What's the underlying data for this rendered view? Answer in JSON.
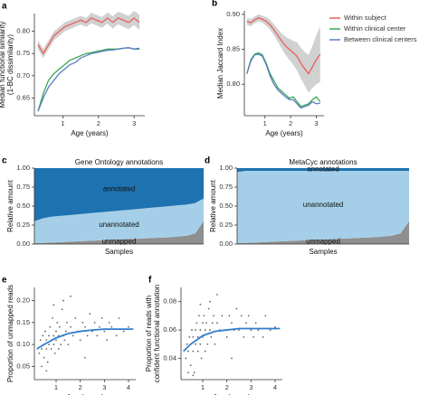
{
  "chart_data": [
    {
      "panel": "a",
      "type": "line",
      "xlabel": "Age (years)",
      "ylabel": [
        "Median functional similarity",
        "(1-BC dissimilarity)"
      ],
      "xlim": [
        0.2,
        3.3
      ],
      "xticks": [
        1,
        2,
        3
      ],
      "ylim": [
        0.61,
        0.84
      ],
      "yticks": [
        {
          "value": 0.65,
          "label": "0.65"
        },
        {
          "value": 0.7,
          "label": "0.70"
        },
        {
          "value": 0.75,
          "label": "0.75"
        },
        {
          "value": 0.8,
          "label": "0.80"
        }
      ],
      "x": [
        0.3,
        0.45,
        0.6,
        0.75,
        0.9,
        1.05,
        1.2,
        1.35,
        1.5,
        1.65,
        1.8,
        1.95,
        2.1,
        2.25,
        2.4,
        2.55,
        2.7,
        2.85,
        3.0,
        3.15
      ],
      "series": [
        {
          "name": "Within subject",
          "color": "#e8605a",
          "values": [
            0.77,
            0.75,
            0.77,
            0.79,
            0.8,
            0.81,
            0.815,
            0.82,
            0.825,
            0.82,
            0.83,
            0.825,
            0.82,
            0.83,
            0.82,
            0.83,
            0.825,
            0.82,
            0.83,
            0.82
          ],
          "lower": [
            0.76,
            0.74,
            0.76,
            0.78,
            0.79,
            0.8,
            0.805,
            0.81,
            0.815,
            0.81,
            0.818,
            0.813,
            0.808,
            0.817,
            0.806,
            0.816,
            0.81,
            0.805,
            0.814,
            0.803
          ],
          "upper": [
            0.78,
            0.76,
            0.78,
            0.8,
            0.81,
            0.82,
            0.825,
            0.83,
            0.835,
            0.83,
            0.842,
            0.837,
            0.832,
            0.843,
            0.834,
            0.844,
            0.84,
            0.835,
            0.846,
            0.837
          ]
        },
        {
          "name": "Within clinical center",
          "color": "#3aa655",
          "values": [
            0.62,
            0.66,
            0.69,
            0.705,
            0.715,
            0.725,
            0.735,
            0.74,
            0.745,
            0.75,
            0.752,
            0.755,
            0.757,
            0.76,
            0.76,
            0.76,
            0.762,
            0.763,
            0.76,
            0.76
          ]
        },
        {
          "name": "Between clinical centers",
          "color": "#5b7fc4",
          "values": [
            0.62,
            0.65,
            0.675,
            0.69,
            0.705,
            0.715,
            0.725,
            0.73,
            0.74,
            0.745,
            0.75,
            0.752,
            0.755,
            0.757,
            0.758,
            0.76,
            0.762,
            0.763,
            0.76,
            0.762
          ]
        }
      ]
    },
    {
      "panel": "b",
      "type": "line",
      "xlabel": "Age (years)",
      "ylabel": [
        "Median Jaccard Index"
      ],
      "legend": "right",
      "xlim": [
        0.2,
        3.3
      ],
      "xticks": [
        1,
        2,
        3
      ],
      "ylim": [
        0.755,
        0.905
      ],
      "yticks": [
        {
          "value": 0.8,
          "label": "0.80"
        },
        0.85,
        {
          "value": 0.9,
          "label": "0.90"
        }
      ],
      "x": [
        0.3,
        0.45,
        0.6,
        0.75,
        0.9,
        1.05,
        1.2,
        1.35,
        1.5,
        1.65,
        1.8,
        1.95,
        2.1,
        2.25,
        2.4,
        2.55,
        2.7,
        2.85,
        3.0,
        3.15
      ],
      "series": [
        {
          "name": "Within subject",
          "color": "#e8605a",
          "values": [
            0.89,
            0.888,
            0.892,
            0.895,
            0.893,
            0.89,
            0.885,
            0.878,
            0.87,
            0.862,
            0.855,
            0.85,
            0.845,
            0.84,
            0.83,
            0.822,
            0.815,
            0.825,
            0.835,
            0.843
          ],
          "lower": [
            0.885,
            0.883,
            0.887,
            0.89,
            0.888,
            0.884,
            0.878,
            0.87,
            0.861,
            0.851,
            0.842,
            0.835,
            0.828,
            0.82,
            0.808,
            0.798,
            0.788,
            0.795,
            0.8,
            0.803
          ],
          "upper": [
            0.895,
            0.893,
            0.897,
            0.9,
            0.898,
            0.896,
            0.892,
            0.886,
            0.879,
            0.873,
            0.868,
            0.865,
            0.862,
            0.86,
            0.852,
            0.846,
            0.842,
            0.855,
            0.87,
            0.883
          ]
        },
        {
          "name": "Within clinical center",
          "color": "#3aa655",
          "values": [
            0.815,
            0.835,
            0.843,
            0.845,
            0.842,
            0.83,
            0.815,
            0.805,
            0.795,
            0.79,
            0.785,
            0.78,
            0.782,
            0.775,
            0.768,
            0.77,
            0.772,
            0.778,
            0.782,
            0.775
          ]
        },
        {
          "name": "Between clinical centers",
          "color": "#5b7fc4",
          "values": [
            0.815,
            0.833,
            0.842,
            0.843,
            0.84,
            0.828,
            0.812,
            0.8,
            0.792,
            0.787,
            0.782,
            0.778,
            0.778,
            0.772,
            0.766,
            0.768,
            0.77,
            0.775,
            0.772,
            0.773
          ]
        }
      ]
    },
    {
      "panel": "c",
      "type": "stacked_area",
      "title": "Gene Ontology annotations",
      "xlabel": "Samples",
      "ylabel": [
        "Relative amount"
      ],
      "ylim": [
        0,
        1
      ],
      "yticks": [
        {
          "value": 0,
          "label": "0.00"
        },
        0.25,
        {
          "value": 0.5,
          "label": "0.50"
        },
        0.75,
        {
          "value": 1,
          "label": "1.00"
        }
      ],
      "categories": [
        null,
        null,
        null,
        null,
        null,
        null,
        null,
        null,
        null,
        null,
        null,
        null,
        null,
        null,
        null,
        null,
        null,
        null,
        null,
        null,
        null
      ],
      "series": [
        {
          "name": "unmapped",
          "color": "#8f8f8f",
          "values": [
            0.01,
            0.015,
            0.02,
            0.025,
            0.03,
            0.035,
            0.04,
            0.045,
            0.05,
            0.055,
            0.06,
            0.065,
            0.07,
            0.075,
            0.08,
            0.085,
            0.09,
            0.1,
            0.11,
            0.14,
            0.3
          ]
        },
        {
          "name": "unannotated",
          "color": "#a5cfe8",
          "values": [
            0.29,
            0.325,
            0.34,
            0.345,
            0.35,
            0.355,
            0.36,
            0.365,
            0.37,
            0.375,
            0.38,
            0.385,
            0.39,
            0.395,
            0.4,
            0.405,
            0.41,
            0.41,
            0.41,
            0.4,
            0.3
          ]
        },
        {
          "name": "annotated",
          "color": "#1f72b0",
          "values": [
            0.7,
            0.66,
            0.64,
            0.63,
            0.62,
            0.61,
            0.6,
            0.59,
            0.58,
            0.57,
            0.56,
            0.55,
            0.54,
            0.53,
            0.52,
            0.51,
            0.5,
            0.49,
            0.48,
            0.46,
            0.4
          ]
        }
      ]
    },
    {
      "panel": "d",
      "type": "stacked_area",
      "title": "MetaCyc annotations",
      "xlabel": "Samples",
      "ylabel": [
        "Relative amount"
      ],
      "ylim": [
        0,
        1
      ],
      "yticks": [
        {
          "value": 0,
          "label": "0.00"
        },
        0.25,
        {
          "value": 0.5,
          "label": "0.50"
        },
        0.75,
        {
          "value": 1,
          "label": "1.00"
        }
      ],
      "categories": [
        null,
        null,
        null,
        null,
        null,
        null,
        null,
        null,
        null,
        null,
        null,
        null,
        null,
        null,
        null,
        null,
        null,
        null,
        null,
        null,
        null
      ],
      "series": [
        {
          "name": "unmapped",
          "color": "#8f8f8f",
          "values": [
            0.01,
            0.015,
            0.02,
            0.025,
            0.03,
            0.035,
            0.04,
            0.045,
            0.05,
            0.055,
            0.06,
            0.065,
            0.07,
            0.075,
            0.08,
            0.085,
            0.09,
            0.1,
            0.11,
            0.14,
            0.3
          ]
        },
        {
          "name": "unannotated",
          "color": "#a5cfe8",
          "values": [
            0.94,
            0.95,
            0.945,
            0.94,
            0.935,
            0.93,
            0.925,
            0.92,
            0.915,
            0.91,
            0.905,
            0.9,
            0.895,
            0.89,
            0.885,
            0.88,
            0.875,
            0.865,
            0.855,
            0.825,
            0.665
          ]
        },
        {
          "name": "annotated",
          "color": "#1f72b0",
          "values": [
            0.05,
            0.035,
            0.035,
            0.035,
            0.035,
            0.035,
            0.035,
            0.035,
            0.035,
            0.035,
            0.035,
            0.035,
            0.035,
            0.035,
            0.035,
            0.035,
            0.035,
            0.035,
            0.035,
            0.035,
            0.035
          ]
        }
      ]
    },
    {
      "panel": "e",
      "type": "scatter",
      "xlabel": "Age (years)",
      "ylabel": [
        "Proportion of unmapped reads"
      ],
      "xlim": [
        0.1,
        4.3
      ],
      "xticks": [
        1,
        2,
        3,
        4
      ],
      "ylim": [
        0.02,
        0.23
      ],
      "yticks": [
        0.05,
        {
          "value": 0.1,
          "label": "0.10"
        },
        0.15,
        {
          "value": 0.2,
          "label": "0.20"
        }
      ],
      "color": "#000000",
      "x": [
        0.3,
        0.35,
        0.4,
        0.45,
        0.5,
        0.5,
        0.55,
        0.6,
        0.6,
        0.65,
        0.7,
        0.7,
        0.75,
        0.8,
        0.8,
        0.85,
        0.9,
        0.9,
        0.95,
        1.0,
        1.0,
        1.05,
        1.1,
        1.1,
        1.15,
        1.2,
        1.25,
        1.3,
        1.35,
        1.4,
        1.45,
        1.5,
        1.6,
        1.7,
        1.8,
        1.9,
        2.0,
        2.1,
        2.2,
        2.3,
        2.4,
        2.5,
        2.6,
        2.7,
        2.8,
        2.9,
        3.0,
        3.1,
        3.2,
        3.3,
        3.5,
        3.6,
        3.8,
        4.0,
        0.4,
        0.6,
        1.3,
        0.9,
        1.6,
        2.2
      ],
      "y": [
        0.08,
        0.11,
        0.09,
        0.12,
        0.07,
        0.1,
        0.13,
        0.09,
        0.11,
        0.06,
        0.12,
        0.1,
        0.14,
        0.09,
        0.11,
        0.16,
        0.1,
        0.12,
        0.08,
        0.13,
        0.11,
        0.15,
        0.09,
        0.12,
        0.14,
        0.1,
        0.18,
        0.12,
        0.11,
        0.13,
        0.15,
        0.1,
        0.14,
        0.12,
        0.16,
        0.13,
        0.11,
        0.15,
        0.14,
        0.12,
        0.17,
        0.13,
        0.15,
        0.12,
        0.14,
        0.16,
        0.13,
        0.11,
        0.15,
        0.14,
        0.12,
        0.16,
        0.13,
        0.14,
        0.05,
        0.04,
        0.2,
        0.19,
        0.21,
        0.07
      ],
      "trend": {
        "color": "#2f7fd0",
        "x": [
          0.2,
          0.5,
          1,
          1.5,
          2,
          2.5,
          3,
          3.5,
          4,
          4.2
        ],
        "y": [
          0.09,
          0.1,
          0.115,
          0.125,
          0.13,
          0.133,
          0.135,
          0.135,
          0.135,
          0.135
        ]
      }
    },
    {
      "panel": "f",
      "type": "scatter",
      "xlabel": "Age (years)",
      "ylabel": [
        "Proportion of reads with",
        "confident functional annotation"
      ],
      "xlim": [
        0.1,
        4.3
      ],
      "xticks": [
        1,
        2,
        3,
        4
      ],
      "ylim": [
        0.025,
        0.09
      ],
      "yticks": [
        0.04,
        0.06,
        0.08
      ],
      "color": "#000000",
      "x": [
        0.3,
        0.35,
        0.4,
        0.45,
        0.5,
        0.5,
        0.55,
        0.6,
        0.6,
        0.65,
        0.7,
        0.7,
        0.75,
        0.8,
        0.8,
        0.85,
        0.9,
        0.9,
        0.95,
        1.0,
        1.0,
        1.05,
        1.1,
        1.1,
        1.15,
        1.2,
        1.25,
        1.3,
        1.35,
        1.4,
        1.45,
        1.5,
        1.6,
        1.7,
        1.8,
        1.9,
        2.0,
        2.1,
        2.2,
        2.3,
        2.4,
        2.5,
        2.6,
        2.7,
        2.8,
        2.9,
        3.0,
        3.1,
        3.2,
        3.3,
        3.5,
        3.6,
        3.8,
        4.0,
        0.4,
        0.6,
        1.3,
        0.9,
        1.6,
        2.2
      ],
      "y": [
        0.04,
        0.05,
        0.045,
        0.055,
        0.035,
        0.05,
        0.06,
        0.045,
        0.055,
        0.03,
        0.06,
        0.05,
        0.065,
        0.045,
        0.055,
        0.07,
        0.05,
        0.06,
        0.04,
        0.065,
        0.055,
        0.07,
        0.045,
        0.06,
        0.065,
        0.05,
        0.075,
        0.06,
        0.055,
        0.065,
        0.07,
        0.05,
        0.065,
        0.06,
        0.07,
        0.06,
        0.055,
        0.07,
        0.065,
        0.06,
        0.075,
        0.06,
        0.07,
        0.055,
        0.065,
        0.07,
        0.06,
        0.055,
        0.065,
        0.06,
        0.055,
        0.07,
        0.06,
        0.062,
        0.03,
        0.028,
        0.08,
        0.078,
        0.085,
        0.04
      ],
      "trend": {
        "color": "#2f7fd0",
        "x": [
          0.2,
          0.5,
          1,
          1.5,
          2,
          2.5,
          3,
          3.5,
          4,
          4.2
        ],
        "y": [
          0.045,
          0.05,
          0.056,
          0.059,
          0.06,
          0.061,
          0.061,
          0.061,
          0.061,
          0.061
        ]
      }
    }
  ]
}
